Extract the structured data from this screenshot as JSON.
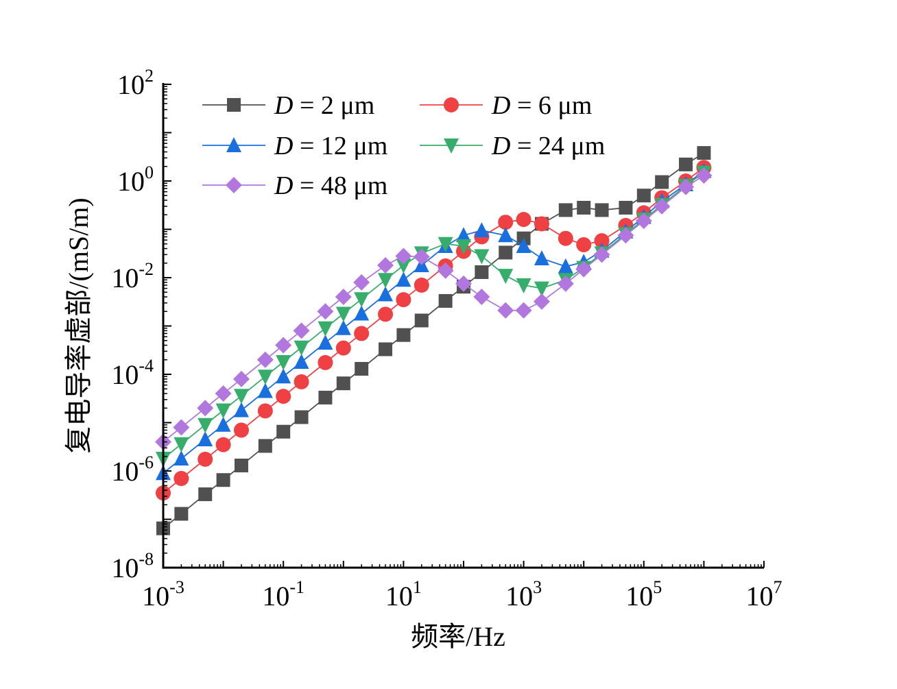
{
  "chart_data": {
    "type": "line",
    "title": "",
    "xlabel": "频率/Hz",
    "ylabel": "复电导率虚部/(mS/m)",
    "xscale": "log",
    "yscale": "log",
    "xlim": [
      0.001,
      10000000
    ],
    "ylim": [
      1e-08,
      100
    ],
    "grid": false,
    "legend_position": "top-left",
    "x_ticks": [
      {
        "value": 0.001,
        "base": "10",
        "exp": "-3"
      },
      {
        "value": 0.1,
        "base": "10",
        "exp": "-1"
      },
      {
        "value": 10,
        "base": "10",
        "exp": "1"
      },
      {
        "value": 1000,
        "base": "10",
        "exp": "3"
      },
      {
        "value": 100000,
        "base": "10",
        "exp": "5"
      },
      {
        "value": 10000000,
        "base": "10",
        "exp": "7"
      }
    ],
    "y_ticks": [
      {
        "value": 100,
        "base": "10",
        "exp": "2"
      },
      {
        "value": 1,
        "base": "10",
        "exp": "0"
      },
      {
        "value": 0.01,
        "base": "10",
        "exp": "-2"
      },
      {
        "value": 0.0001,
        "base": "10",
        "exp": "-4"
      },
      {
        "value": 1e-06,
        "base": "10",
        "exp": "-6"
      },
      {
        "value": 1e-08,
        "base": "10",
        "exp": "-8"
      }
    ],
    "x": [
      0.001,
      0.002,
      0.005,
      0.01,
      0.02,
      0.05,
      0.1,
      0.2,
      0.5,
      1,
      2,
      5,
      10,
      20,
      50,
      100,
      200,
      500,
      1000,
      2000,
      5000,
      10000,
      20000,
      50000,
      100000,
      200000,
      500000,
      1000000
    ],
    "series": [
      {
        "name": "D = 2 μm",
        "label_var": "D",
        "label_rest": " = 2 μm",
        "color": "#505050",
        "marker": "square",
        "values": [
          6.5e-08,
          1.3e-07,
          3.3e-07,
          6.5e-07,
          1.3e-06,
          3.3e-06,
          6.5e-06,
          1.3e-05,
          3.3e-05,
          6.5e-05,
          0.00013,
          0.00033,
          0.00065,
          0.0013,
          0.0033,
          0.0065,
          0.013,
          0.033,
          0.065,
          0.13,
          0.25,
          0.28,
          0.25,
          0.28,
          0.5,
          0.95,
          2.2,
          3.8
        ]
      },
      {
        "name": "D = 6 μm",
        "label_var": "D",
        "label_rest": " = 6 μm",
        "color": "#ef4043",
        "marker": "circle",
        "values": [
          3.5e-07,
          7e-07,
          1.75e-06,
          3.5e-06,
          7e-06,
          1.75e-05,
          3.5e-05,
          7e-05,
          0.000175,
          0.00035,
          0.0007,
          0.00175,
          0.0035,
          0.007,
          0.0175,
          0.035,
          0.07,
          0.14,
          0.16,
          0.13,
          0.065,
          0.048,
          0.058,
          0.12,
          0.22,
          0.45,
          1.0,
          1.9
        ]
      },
      {
        "name": "D = 12 μm",
        "label_var": "D",
        "label_rest": " = 12 μm",
        "color": "#1a6fdf",
        "marker": "triangle-up",
        "values": [
          9e-07,
          1.8e-06,
          4.5e-06,
          9e-06,
          1.8e-05,
          4.5e-05,
          9e-05,
          0.00018,
          0.00045,
          0.0009,
          0.0018,
          0.0045,
          0.009,
          0.018,
          0.045,
          0.075,
          0.095,
          0.075,
          0.045,
          0.025,
          0.017,
          0.021,
          0.036,
          0.09,
          0.18,
          0.38,
          0.85,
          1.6
        ]
      },
      {
        "name": "D = 24 μm",
        "label_var": "D",
        "label_rest": " = 24 μm",
        "color": "#37ad6b",
        "marker": "triangle-down",
        "values": [
          1.8e-06,
          3.6e-06,
          9e-06,
          1.8e-05,
          3.6e-05,
          9e-05,
          0.00018,
          0.00036,
          0.0009,
          0.0018,
          0.0036,
          0.009,
          0.018,
          0.032,
          0.05,
          0.045,
          0.028,
          0.011,
          0.007,
          0.006,
          0.009,
          0.016,
          0.032,
          0.08,
          0.16,
          0.32,
          0.8,
          1.5
        ]
      },
      {
        "name": "D = 48 μm",
        "label_var": "D",
        "label_rest": " = 48 μm",
        "color": "#b177de",
        "marker": "diamond",
        "values": [
          4e-06,
          8e-06,
          2e-05,
          4e-05,
          8e-05,
          0.0002,
          0.0004,
          0.0008,
          0.002,
          0.004,
          0.008,
          0.018,
          0.028,
          0.027,
          0.014,
          0.0075,
          0.004,
          0.0021,
          0.0021,
          0.0032,
          0.0075,
          0.015,
          0.03,
          0.075,
          0.15,
          0.3,
          0.75,
          1.3
        ]
      }
    ]
  }
}
